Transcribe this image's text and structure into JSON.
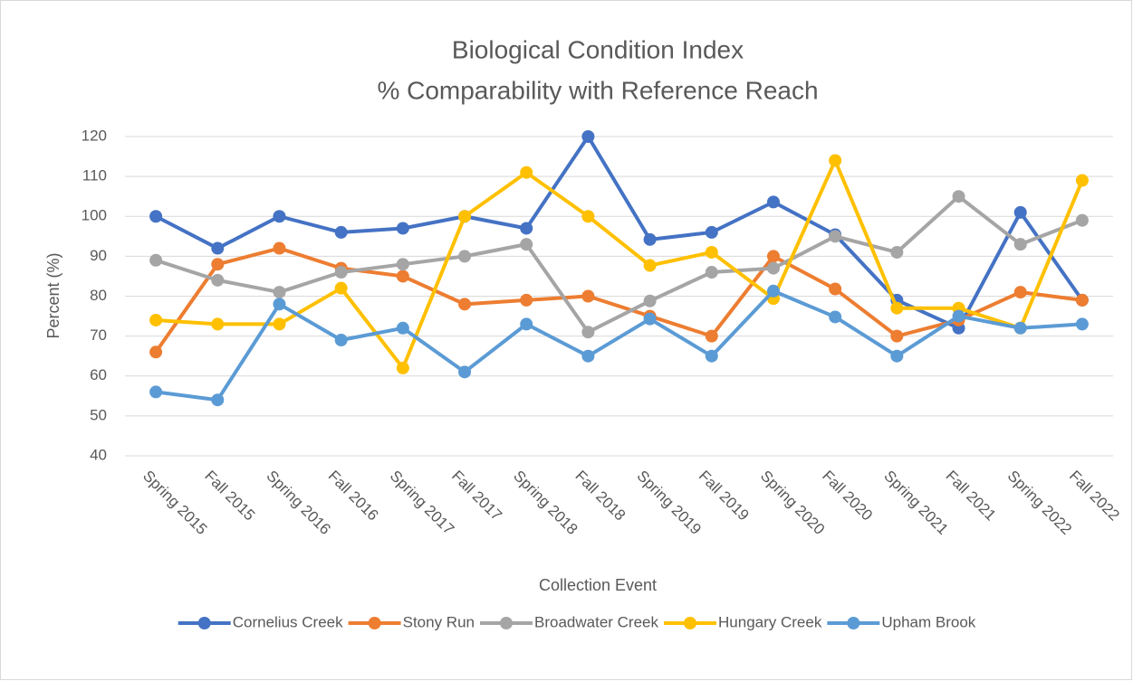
{
  "chart_data": {
    "type": "line",
    "title": "Biological Condition Index",
    "subtitle": "% Comparability with Reference Reach",
    "x_label": "Collection Event",
    "y_label": "Percent (%)",
    "categories": [
      "Spring 2015",
      "Fall 2015",
      "Spring 2016",
      "Fall 2016",
      "Spring 2017",
      "Fall 2017",
      "Spring 2018",
      "Fall 2018",
      "Spring 2019",
      "Fall 2019",
      "Spring 2020",
      "Fall 2020",
      "Spring 2021",
      "Fall 2021",
      "Spring 2022",
      "Fall 2022"
    ],
    "series": [
      {
        "name": "Cornelius Creek",
        "color": "#4472c4",
        "values": [
          100,
          92,
          100,
          96,
          97,
          100,
          97,
          120,
          94.2,
          96,
          103.6,
          95.4,
          79,
          72,
          101,
          79
        ]
      },
      {
        "name": "Stony Run",
        "color": "#ed7d31",
        "values": [
          66,
          88,
          92,
          87,
          85,
          78,
          79,
          80,
          75,
          70,
          90,
          81.8,
          70,
          74,
          81,
          79
        ]
      },
      {
        "name": "Broadwater Creek",
        "color": "#a5a5a5",
        "values": [
          89,
          84,
          81,
          86,
          88,
          90,
          93,
          71,
          78.8,
          86,
          87,
          95,
          91,
          105,
          93,
          99
        ]
      },
      {
        "name": "Hungary Creek",
        "color": "#ffc000",
        "values": [
          74,
          73,
          73,
          82,
          62,
          100,
          111,
          100,
          87.7,
          91,
          79.4,
          114,
          77,
          77,
          72,
          109
        ]
      },
      {
        "name": "Upham Brook",
        "color": "#5b9bd5",
        "values": [
          56,
          54,
          78,
          69,
          72,
          61,
          73,
          65,
          74.3,
          65,
          81.3,
          74.8,
          65,
          75,
          72,
          73
        ]
      }
    ],
    "ylim": [
      40,
      120
    ],
    "yticks": [
      40,
      50,
      60,
      70,
      80,
      90,
      100,
      110,
      120
    ],
    "grid": true,
    "legend": "bottom"
  }
}
